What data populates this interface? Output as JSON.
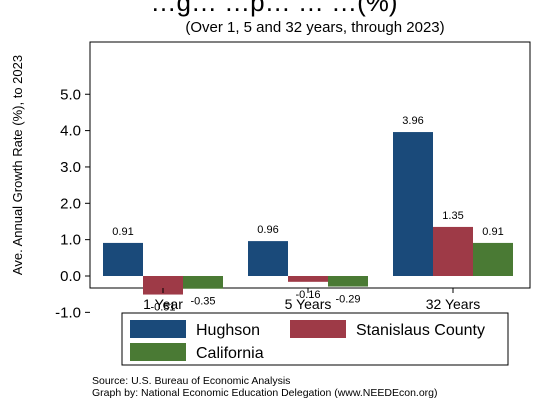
{
  "chart_data": {
    "type": "bar",
    "title": "…g… …p… … …(%)",
    "subtitle": "(Over 1, 5 and 32 years, through 2023)",
    "ylabel": "Ave. Annual Growth Rate (%), to 2023",
    "xlabel": "",
    "ylim": [
      -1.0,
      5.0
    ],
    "yticks": [
      -1.0,
      0.0,
      1.0,
      2.0,
      3.0,
      4.0,
      5.0
    ],
    "ytick_labels": [
      "-1.0",
      "0.0",
      "1.0",
      "2.0",
      "3.0",
      "4.0",
      "5.0"
    ],
    "categories": [
      "1 Year",
      "5 Years",
      "32 Years"
    ],
    "series": [
      {
        "name": "Hughson",
        "color": "#1a4a7a",
        "values": [
          0.91,
          0.96,
          3.96
        ],
        "labels": [
          "0.91",
          "0.96",
          "3.96"
        ]
      },
      {
        "name": "Stanislaus County",
        "color": "#9e3a47",
        "values": [
          -0.51,
          -0.16,
          1.35
        ],
        "labels": [
          "-0.51",
          "-0.16",
          "1.35"
        ]
      },
      {
        "name": "California",
        "color": "#4a7a34",
        "values": [
          -0.35,
          -0.29,
          0.91
        ],
        "labels": [
          "-0.35",
          "-0.29",
          "0.91"
        ]
      }
    ],
    "grid": false,
    "legend_position": "bottom",
    "source": "Source: U.S. Bureau of Economic Analysis",
    "credit": "Graph by: National Economic Education Delegation (www.NEEDEcon.org)"
  }
}
